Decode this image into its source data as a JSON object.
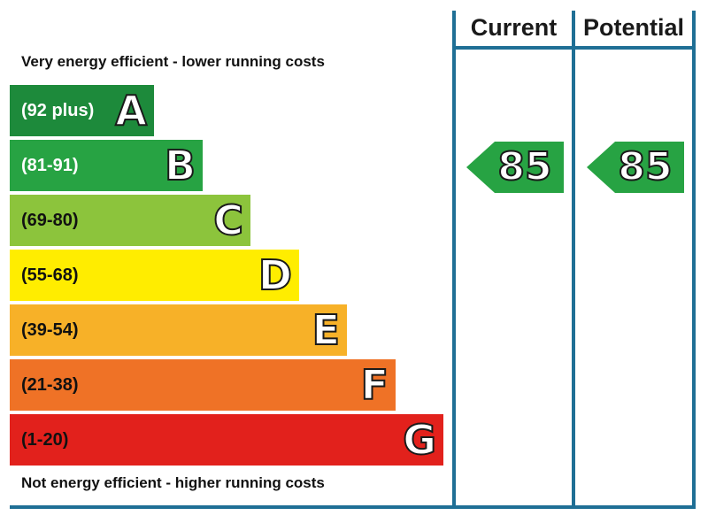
{
  "headers": {
    "current": "Current",
    "potential": "Potential"
  },
  "captions": {
    "top": "Very energy efficient - lower running costs",
    "bottom": "Not energy efficient - higher running costs"
  },
  "chart_data": {
    "type": "bar",
    "title": "",
    "bands": [
      {
        "letter": "A",
        "range": "(92 plus)",
        "color": "#1d8a3b",
        "text_color": "#ffffff"
      },
      {
        "letter": "B",
        "range": "(81-91)",
        "color": "#27a343",
        "text_color": "#ffffff"
      },
      {
        "letter": "C",
        "range": "(69-80)",
        "color": "#8cc43c",
        "text_color": "#111111"
      },
      {
        "letter": "D",
        "range": "(55-68)",
        "color": "#ffed00",
        "text_color": "#111111"
      },
      {
        "letter": "E",
        "range": "(39-54)",
        "color": "#f7b128",
        "text_color": "#111111"
      },
      {
        "letter": "F",
        "range": "(21-38)",
        "color": "#ef7226",
        "text_color": "#111111"
      },
      {
        "letter": "G",
        "range": "(1-20)",
        "color": "#e2211c",
        "text_color": "#111111"
      }
    ],
    "current": {
      "value": 85,
      "band": "B",
      "color": "#27a343"
    },
    "potential": {
      "value": 85,
      "band": "B",
      "color": "#27a343"
    }
  }
}
